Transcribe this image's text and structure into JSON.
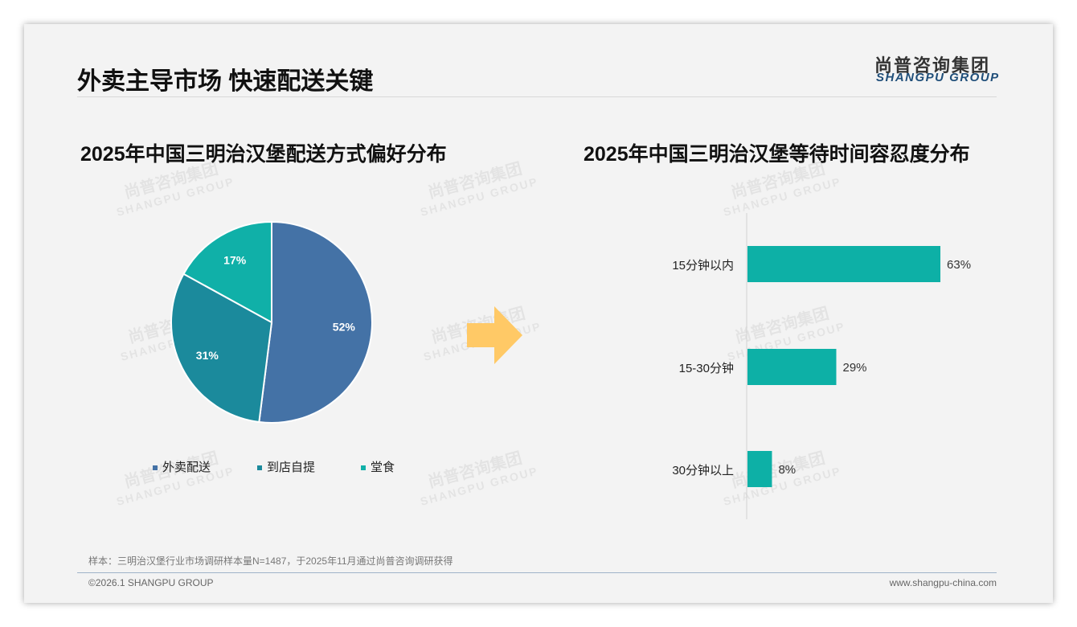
{
  "header": {
    "title": "外卖主导市场 快速配送关键",
    "logo_cn": "尚普咨询集团",
    "logo_en": "SHANGPU GROUP"
  },
  "watermark": {
    "cn": "尚普咨询集团",
    "en": "SHANGPU GROUP"
  },
  "chart_data": [
    {
      "type": "pie",
      "title": "2025年中国三明治汉堡配送方式偏好分布",
      "categories": [
        "外卖配送",
        "到店自提",
        "堂食"
      ],
      "values": [
        52,
        31,
        17
      ],
      "labels": [
        "52%",
        "31%",
        "17%"
      ],
      "colors": [
        "#4472a6",
        "#1b8a9c",
        "#10b0a8"
      ],
      "legend": "bottom"
    },
    {
      "type": "bar",
      "orientation": "horizontal",
      "title": "2025年中国三明治汉堡等待时间容忍度分布",
      "categories": [
        "15分钟以内",
        "15-30分钟",
        "30分钟以上"
      ],
      "values": [
        63,
        29,
        8
      ],
      "labels": [
        "63%",
        "29%",
        "8%"
      ],
      "color": "#0db0a6",
      "xlim": [
        0,
        100
      ]
    }
  ],
  "footer": {
    "note": "样本：三明治汉堡行业市场调研样本量N=1487，于2025年11月通过尚普咨询调研获得",
    "copyright": "©2026.1 SHANGPU GROUP",
    "website": "www.shangpu-china.com"
  }
}
